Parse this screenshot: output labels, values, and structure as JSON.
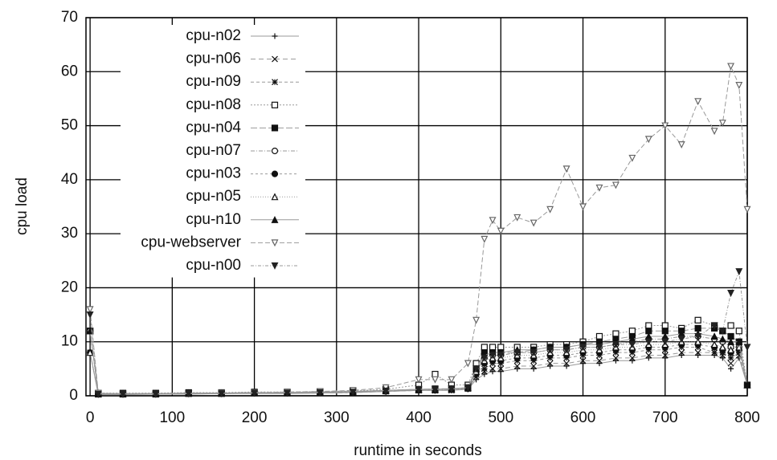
{
  "chart_data": {
    "type": "line",
    "x_label": "runtime in seconds",
    "y_label": "cpu load",
    "x": [
      0,
      10,
      40,
      80,
      120,
      160,
      200,
      240,
      280,
      320,
      360,
      400,
      420,
      440,
      460,
      470,
      480,
      490,
      500,
      520,
      540,
      560,
      580,
      600,
      620,
      640,
      660,
      680,
      700,
      720,
      740,
      760,
      770,
      780,
      790,
      800
    ],
    "xlim": [
      -5,
      800
    ],
    "xticks": [
      0,
      100,
      200,
      300,
      400,
      500,
      600,
      700,
      800
    ],
    "ylim": [
      0,
      70
    ],
    "yticks": [
      0,
      10,
      20,
      30,
      40,
      50,
      60,
      70
    ],
    "grid": true,
    "legend": "top-left",
    "series": [
      {
        "name": "cpu-n02",
        "color": "#111",
        "marker": "plus",
        "values": [
          8,
          0.2,
          0.2,
          0.3,
          0.3,
          0.4,
          0.4,
          0.4,
          0.5,
          0.6,
          0.8,
          1,
          1,
          1,
          1.2,
          3,
          4,
          4.5,
          4.5,
          5,
          5,
          5.5,
          5.5,
          6,
          6,
          6.5,
          6.5,
          7,
          7,
          7.5,
          7.5,
          7.5,
          7,
          5,
          7,
          2
        ]
      },
      {
        "name": "cpu-n06",
        "color": "#111",
        "marker": "cross",
        "values": [
          8,
          0.3,
          0.3,
          0.3,
          0.4,
          0.4,
          0.5,
          0.5,
          0.5,
          0.6,
          0.8,
          1,
          1,
          1,
          1.3,
          3.5,
          4.5,
          5,
          5,
          5.5,
          5.5,
          6,
          6,
          6.5,
          6.5,
          7,
          7,
          7.5,
          7.5,
          8,
          8,
          8,
          7.5,
          6,
          7.5,
          2
        ]
      },
      {
        "name": "cpu-n09",
        "color": "#111",
        "marker": "star",
        "values": [
          12,
          0.3,
          0.3,
          0.4,
          0.4,
          0.5,
          0.5,
          0.5,
          0.6,
          0.7,
          0.9,
          1,
          1,
          1.1,
          1.4,
          4,
          5,
          6,
          6,
          6.5,
          6.5,
          7,
          7,
          7.5,
          7.5,
          8,
          8,
          8.5,
          8.5,
          9,
          9,
          8,
          8,
          7,
          8,
          2
        ]
      },
      {
        "name": "cpu-n08",
        "color": "#111",
        "marker": "square",
        "values": [
          12,
          0.5,
          0.5,
          0.5,
          0.6,
          0.6,
          0.7,
          0.7,
          0.8,
          0.9,
          1.2,
          2,
          4,
          2,
          2,
          6,
          9,
          9,
          9,
          9,
          9,
          9.5,
          9.5,
          10,
          11,
          11.5,
          12,
          13,
          13,
          12.5,
          14,
          13,
          12,
          13,
          12,
          2
        ]
      },
      {
        "name": "cpu-n04",
        "color": "#111",
        "marker": "filled-square",
        "values": [
          12,
          0.4,
          0.4,
          0.4,
          0.5,
          0.5,
          0.6,
          0.6,
          0.7,
          0.8,
          1,
          1.2,
          1.3,
          1.3,
          1.5,
          5,
          8,
          8,
          8,
          8,
          8.5,
          9,
          9,
          9.5,
          10,
          10.5,
          11,
          12,
          12,
          12,
          12.5,
          12.5,
          12,
          11,
          10,
          2
        ]
      },
      {
        "name": "cpu-n07",
        "color": "#111",
        "marker": "circle",
        "values": [
          12,
          0.3,
          0.3,
          0.4,
          0.4,
          0.5,
          0.5,
          0.6,
          0.6,
          0.7,
          0.9,
          1.1,
          1.2,
          1.2,
          1.4,
          4.5,
          7,
          7.5,
          7.5,
          8,
          8,
          8.5,
          8.5,
          9,
          9,
          9.5,
          10,
          10.5,
          10.5,
          11,
          11,
          10.5,
          10,
          9,
          9,
          2
        ]
      },
      {
        "name": "cpu-n03",
        "color": "#111",
        "marker": "filled-circle",
        "values": [
          8,
          0.3,
          0.3,
          0.3,
          0.4,
          0.4,
          0.5,
          0.5,
          0.5,
          0.6,
          0.8,
          1,
          1,
          1.1,
          1.3,
          4,
          6,
          6.5,
          6.5,
          7,
          7,
          7.5,
          7.5,
          8,
          8,
          8.5,
          8.5,
          9,
          9,
          9.5,
          9.5,
          9,
          8.5,
          8,
          8.5,
          2
        ]
      },
      {
        "name": "cpu-n05",
        "color": "#111",
        "marker": "triangle",
        "values": [
          8,
          0.3,
          0.3,
          0.3,
          0.4,
          0.4,
          0.5,
          0.5,
          0.6,
          0.7,
          0.9,
          1.1,
          1.1,
          1.2,
          1.4,
          4.5,
          6.5,
          7,
          7,
          7.5,
          7.5,
          8,
          8,
          8.5,
          8.5,
          9,
          9,
          9.5,
          9.5,
          10,
          10,
          9.5,
          9,
          8.5,
          9,
          2
        ]
      },
      {
        "name": "cpu-n10",
        "color": "#111",
        "marker": "filled-triangle",
        "values": [
          12,
          0.4,
          0.4,
          0.4,
          0.5,
          0.5,
          0.6,
          0.6,
          0.7,
          0.8,
          1,
          1.2,
          1.2,
          1.3,
          1.5,
          5,
          7.5,
          8,
          8,
          8.5,
          8.5,
          9,
          9,
          9.5,
          9.5,
          10,
          10.5,
          11,
          11,
          11.5,
          11.5,
          11,
          10.5,
          10,
          10,
          2
        ]
      },
      {
        "name": "cpu-webserver",
        "color": "#666",
        "marker": "inv-triangle",
        "values": [
          16,
          0.5,
          0.3,
          0.3,
          0.4,
          0.5,
          0.6,
          0.7,
          0.8,
          1,
          1.5,
          3,
          3,
          3,
          6,
          14,
          29,
          32.5,
          30.5,
          33,
          32,
          34.5,
          42,
          35,
          38.5,
          39,
          44,
          47.5,
          50,
          46.5,
          54.5,
          49,
          50.5,
          61,
          57.5,
          34.5
        ]
      },
      {
        "name": "cpu-n00",
        "color": "#222",
        "marker": "filled-inv-triangle",
        "values": [
          15,
          0.3,
          0.3,
          0.3,
          0.4,
          0.4,
          0.5,
          0.5,
          0.6,
          0.7,
          0.9,
          1.2,
          1.2,
          1.3,
          1.5,
          5,
          7,
          7.5,
          7.5,
          8,
          8,
          8.5,
          8.5,
          9,
          9,
          9.5,
          9.5,
          10,
          10,
          10.5,
          11,
          13,
          12,
          19,
          23,
          9
        ]
      }
    ]
  }
}
